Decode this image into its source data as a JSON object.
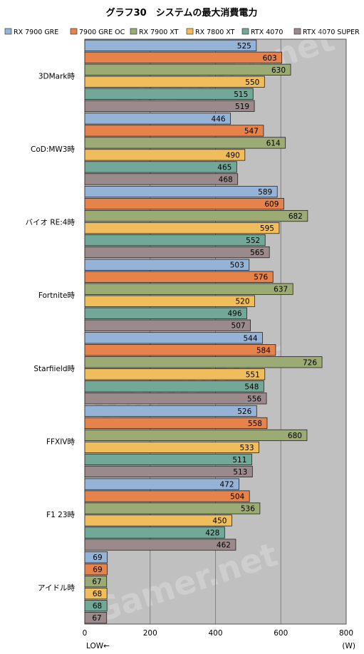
{
  "chart_data": {
    "type": "bar",
    "orientation": "horizontal",
    "title": "グラフ30　システムの最大消費電力",
    "categories": [
      "3DMark時",
      "CoD:MW3時",
      "バイオ RE:4時",
      "Fortnite時",
      "Starfiield時",
      "FFXIV時",
      "F1 23時",
      "アイドル時"
    ],
    "series": [
      {
        "name": "RX 7900 GRE",
        "color": "#95b3d7",
        "values": [
          525,
          446,
          589,
          503,
          544,
          526,
          472,
          69
        ]
      },
      {
        "name": "7900 GRE OC",
        "color": "#e6834a",
        "values": [
          603,
          547,
          609,
          576,
          584,
          558,
          504,
          69
        ]
      },
      {
        "name": "RX 7900 XT",
        "color": "#9bab73",
        "values": [
          630,
          614,
          682,
          637,
          726,
          680,
          536,
          67
        ]
      },
      {
        "name": "RX 7800 XT",
        "color": "#f0bd5c",
        "values": [
          550,
          490,
          595,
          520,
          551,
          533,
          450,
          68
        ]
      },
      {
        "name": "RTX 4070",
        "color": "#72a898",
        "values": [
          515,
          465,
          552,
          496,
          548,
          511,
          428,
          68
        ]
      },
      {
        "name": "RTX 4070 SUPER",
        "color": "#9a8a8c",
        "values": [
          519,
          468,
          565,
          507,
          556,
          513,
          462,
          67
        ]
      }
    ],
    "xlim": [
      0,
      800
    ],
    "xticks": [
      "0",
      "200",
      "400",
      "600",
      "800"
    ],
    "unit": "(W)",
    "direction_note": "LOW←",
    "grid": true,
    "legend_position": "top",
    "plot_background": "#c0c0c0",
    "watermark": "4Gamer.net"
  }
}
